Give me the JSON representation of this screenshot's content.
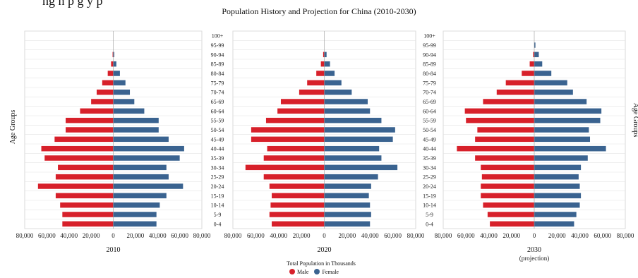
{
  "header_text": "ng            n                  p g            y            p",
  "chart_data": {
    "type": "bar",
    "title": "Population History and Projection for China (2010-2030)",
    "ylabel": "Age Groups",
    "xlabel": "Total Population in Thousands",
    "xlim": [
      -80000,
      80000
    ],
    "x_ticks": [
      "80,000",
      "60,000",
      "40,000",
      "20,000",
      "0",
      "20,000",
      "40,000",
      "60,000",
      "80,000"
    ],
    "age_groups": [
      "100+",
      "95-99",
      "90-94",
      "85-89",
      "80-84",
      "75-79",
      "70-74",
      "65-69",
      "60-64",
      "55-59",
      "50-54",
      "45-49",
      "40-44",
      "35-39",
      "30-34",
      "25-29",
      "20-24",
      "15-19",
      "10-14",
      "5-9",
      "0-4"
    ],
    "legend": [
      {
        "name": "Male",
        "color": "#d7202a"
      },
      {
        "name": "Female",
        "color": "#3a6390"
      }
    ],
    "panels": [
      {
        "label": "2010",
        "sublabel": "",
        "male": [
          0,
          0,
          600,
          2000,
          5000,
          10000,
          15000,
          20000,
          30000,
          43000,
          43000,
          53000,
          65000,
          62000,
          50000,
          52000,
          68000,
          52000,
          48000,
          46000,
          46000
        ],
        "female": [
          0,
          0,
          900,
          2800,
          6000,
          11000,
          15000,
          19000,
          28000,
          41000,
          41000,
          50000,
          64000,
          60000,
          48000,
          50000,
          63000,
          48000,
          42000,
          39000,
          39000
        ]
      },
      {
        "label": "2020",
        "sublabel": "",
        "male": [
          0,
          0,
          1000,
          3000,
          7000,
          15000,
          22000,
          38000,
          41000,
          51000,
          64000,
          64000,
          50000,
          53000,
          69000,
          53000,
          48000,
          46000,
          47000,
          48000,
          46000
        ],
        "female": [
          0,
          0,
          2000,
          5000,
          9000,
          15000,
          24000,
          38000,
          40000,
          50000,
          62000,
          60000,
          48000,
          50000,
          64000,
          47000,
          41000,
          39000,
          40000,
          41000,
          40000
        ]
      },
      {
        "label": "2030",
        "sublabel": "(projection)",
        "male": [
          0,
          0,
          1000,
          4000,
          11000,
          25000,
          33000,
          45000,
          61000,
          60000,
          50000,
          52000,
          68000,
          52000,
          47000,
          46000,
          47000,
          47000,
          45000,
          41000,
          39000
        ],
        "female": [
          0,
          1000,
          4000,
          7000,
          15000,
          29000,
          34000,
          46000,
          59000,
          58000,
          48000,
          49000,
          63000,
          47000,
          41000,
          39000,
          40000,
          41000,
          40000,
          37000,
          35000
        ]
      }
    ]
  }
}
